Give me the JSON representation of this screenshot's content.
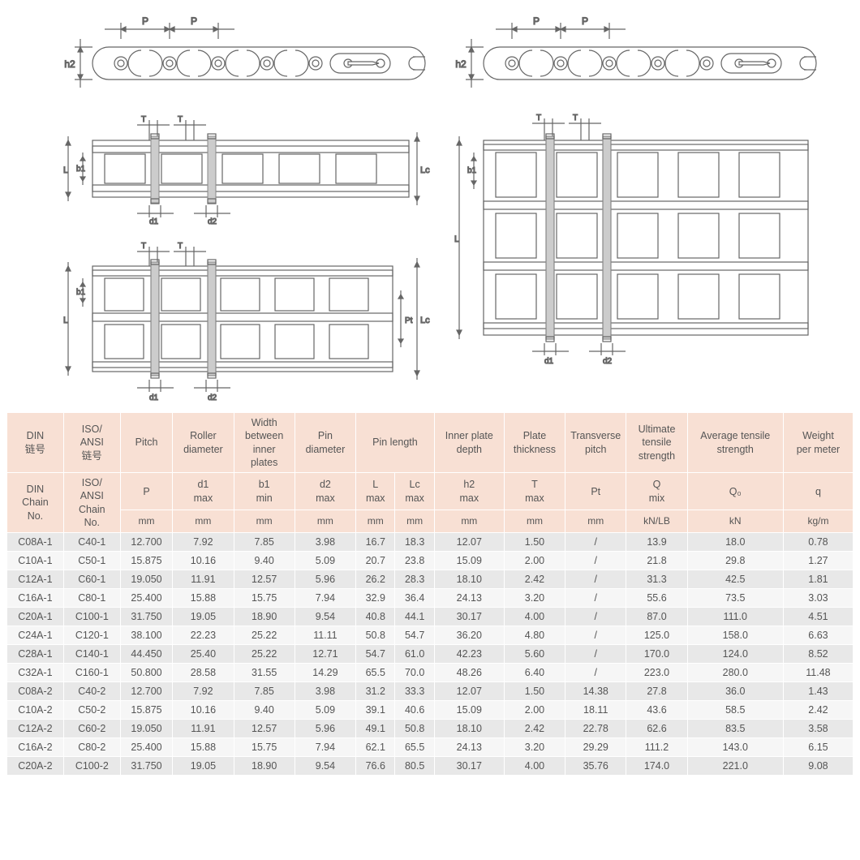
{
  "diagrams": {
    "labels": {
      "P": "P",
      "h2": "h2",
      "T": "T",
      "b1": "b1",
      "L": "L",
      "Lc": "Lc",
      "d1": "d1",
      "d2": "d2",
      "Pt": "Pt"
    },
    "stroke_color": "#666666",
    "fill_color": "#ffffff",
    "hatch_color": "#888888"
  },
  "table": {
    "header_bg": "#f8e0d4",
    "row_odd_bg": "#e8e8e8",
    "row_even_bg": "#f6f6f6",
    "text_color": "#555555",
    "headers_zh": {
      "din": "DIN\n链号",
      "iso": "ISO/\nANSI\n链号",
      "pitch": "Pitch",
      "roller": "Roller\ndiameter",
      "width_inner": "Width\nbetween\ninner\nplates",
      "pin_dia": "Pin\ndiameter",
      "pin_len": "Pin length",
      "plate_depth": "Inner plate\ndepth",
      "plate_thk": "Plate\nthickness",
      "trans_pitch": "Transverse\npitch",
      "ult_tensile": "Ultimate\ntensile\nstrength",
      "avg_tensile": "Average tensile\nstrength",
      "weight": "Weight\nper meter"
    },
    "headers_en": {
      "din": "DIN\nChain\nNo.",
      "iso": "ISO/\nANSI\nChain\nNo.",
      "P": "P",
      "d1": "d1\nmax",
      "b1": "b1\nmin",
      "d2": "d2\nmax",
      "L": "L\nmax",
      "Lc": "Lc\nmax",
      "h2": "h2\nmax",
      "T": "T\nmax",
      "Pt": "Pt",
      "Q": "Q\nmix",
      "Q0": "Q₀",
      "q": "q"
    },
    "units": {
      "mm": "mm",
      "knlb": "kN/LB",
      "kn": "kN",
      "kgm": "kg/m"
    },
    "rows": [
      [
        "C08A-1",
        "C40-1",
        "12.700",
        "7.92",
        "7.85",
        "3.98",
        "16.7",
        "18.3",
        "12.07",
        "1.50",
        "/",
        "13.9",
        "18.0",
        "0.78"
      ],
      [
        "C10A-1",
        "C50-1",
        "15.875",
        "10.16",
        "9.40",
        "5.09",
        "20.7",
        "23.8",
        "15.09",
        "2.00",
        "/",
        "21.8",
        "29.8",
        "1.27"
      ],
      [
        "C12A-1",
        "C60-1",
        "19.050",
        "11.91",
        "12.57",
        "5.96",
        "26.2",
        "28.3",
        "18.10",
        "2.42",
        "/",
        "31.3",
        "42.5",
        "1.81"
      ],
      [
        "C16A-1",
        "C80-1",
        "25.400",
        "15.88",
        "15.75",
        "7.94",
        "32.9",
        "36.4",
        "24.13",
        "3.20",
        "/",
        "55.6",
        "73.5",
        "3.03"
      ],
      [
        "C20A-1",
        "C100-1",
        "31.750",
        "19.05",
        "18.90",
        "9.54",
        "40.8",
        "44.1",
        "30.17",
        "4.00",
        "/",
        "87.0",
        "111.0",
        "4.51"
      ],
      [
        "C24A-1",
        "C120-1",
        "38.100",
        "22.23",
        "25.22",
        "11.11",
        "50.8",
        "54.7",
        "36.20",
        "4.80",
        "/",
        "125.0",
        "158.0",
        "6.63"
      ],
      [
        "C28A-1",
        "C140-1",
        "44.450",
        "25.40",
        "25.22",
        "12.71",
        "54.7",
        "61.0",
        "42.23",
        "5.60",
        "/",
        "170.0",
        "124.0",
        "8.52"
      ],
      [
        "C32A-1",
        "C160-1",
        "50.800",
        "28.58",
        "31.55",
        "14.29",
        "65.5",
        "70.0",
        "48.26",
        "6.40",
        "/",
        "223.0",
        "280.0",
        "11.48"
      ],
      [
        "C08A-2",
        "C40-2",
        "12.700",
        "7.92",
        "7.85",
        "3.98",
        "31.2",
        "33.3",
        "12.07",
        "1.50",
        "14.38",
        "27.8",
        "36.0",
        "1.43"
      ],
      [
        "C10A-2",
        "C50-2",
        "15.875",
        "10.16",
        "9.40",
        "5.09",
        "39.1",
        "40.6",
        "15.09",
        "2.00",
        "18.11",
        "43.6",
        "58.5",
        "2.42"
      ],
      [
        "C12A-2",
        "C60-2",
        "19.050",
        "11.91",
        "12.57",
        "5.96",
        "49.1",
        "50.8",
        "18.10",
        "2.42",
        "22.78",
        "62.6",
        "83.5",
        "3.58"
      ],
      [
        "C16A-2",
        "C80-2",
        "25.400",
        "15.88",
        "15.75",
        "7.94",
        "62.1",
        "65.5",
        "24.13",
        "3.20",
        "29.29",
        "111.2",
        "143.0",
        "6.15"
      ],
      [
        "C20A-2",
        "C100-2",
        "31.750",
        "19.05",
        "18.90",
        "9.54",
        "76.6",
        "80.5",
        "30.17",
        "4.00",
        "35.76",
        "174.0",
        "221.0",
        "9.08"
      ]
    ]
  }
}
